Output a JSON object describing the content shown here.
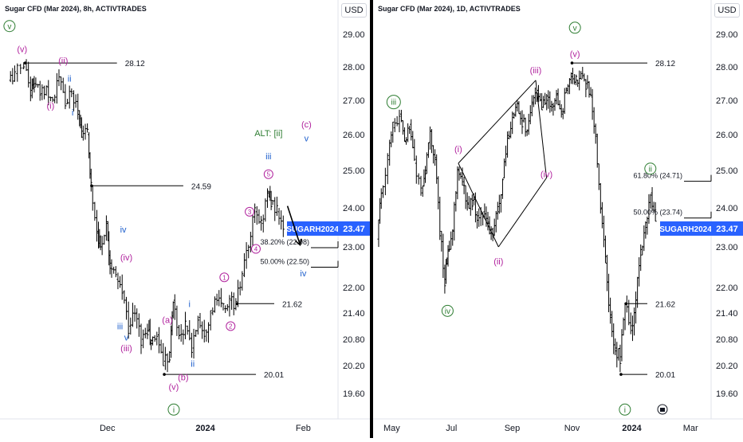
{
  "chart_data": [
    {
      "type": "candlestick",
      "title": "Sugar CFD (Mar 2024), 8h, ACTIVTRADES",
      "currency": "USD",
      "x_ticks": [
        "Dec",
        "2024",
        "Feb"
      ],
      "y_ticks": [
        29.0,
        28.0,
        27.0,
        26.0,
        25.0,
        24.0,
        23.0,
        22.0,
        21.4,
        20.8,
        20.2,
        19.6
      ],
      "ylim": [
        19.2,
        29.6
      ],
      "price_lines": [
        {
          "label": "28.12",
          "value": 28.12
        },
        {
          "label": "24.59",
          "value": 24.59
        },
        {
          "label": "21.62",
          "value": 21.62
        },
        {
          "label": "20.01",
          "value": 20.01
        }
      ],
      "fib_levels": [
        {
          "label": "38.20% (22.98)",
          "value": 22.98
        },
        {
          "label": "50.00% (22.50)",
          "value": 22.5
        }
      ],
      "last_price": {
        "symbol": "SUGARH2024",
        "value": "23.47"
      },
      "price_path": [
        [
          "2023-10-31",
          27.6
        ],
        [
          "2023-11-02",
          27.8
        ],
        [
          "2023-11-05",
          28.1
        ],
        [
          "2023-11-07",
          27.3
        ],
        [
          "2023-11-08",
          27.5
        ],
        [
          "2023-11-10",
          27.2
        ],
        [
          "2023-11-12",
          27.4
        ],
        [
          "2023-11-14",
          27.0
        ],
        [
          "2023-11-16",
          27.7
        ],
        [
          "2023-11-18",
          26.9
        ],
        [
          "2023-11-20",
          27.2
        ],
        [
          "2023-11-22",
          26.7
        ],
        [
          "2023-11-23",
          26.1
        ],
        [
          "2023-11-25",
          26.0
        ],
        [
          "2023-11-26",
          24.6
        ],
        [
          "2023-11-28",
          23.4
        ],
        [
          "2023-11-29",
          23.0
        ],
        [
          "2023-12-01",
          23.6
        ],
        [
          "2023-12-02",
          22.6
        ],
        [
          "2023-12-04",
          22.2
        ],
        [
          "2023-12-06",
          21.9
        ],
        [
          "2023-12-08",
          21.1
        ],
        [
          "2023-12-10",
          21.4
        ],
        [
          "2023-12-12",
          20.8
        ],
        [
          "2023-12-14",
          21.0
        ],
        [
          "2023-12-15",
          20.7
        ],
        [
          "2023-12-17",
          20.9
        ],
        [
          "2023-12-19",
          20.3
        ],
        [
          "2023-12-21",
          20.5
        ],
        [
          "2023-12-22",
          21.7
        ],
        [
          "2023-12-24",
          20.9
        ],
        [
          "2023-12-26",
          21.1
        ],
        [
          "2023-12-28",
          20.6
        ],
        [
          "2023-12-30",
          21.3
        ],
        [
          "2024-01-01",
          21.0
        ],
        [
          "2024-01-03",
          21.4
        ],
        [
          "2024-01-05",
          21.7
        ],
        [
          "2024-01-07",
          21.5
        ],
        [
          "2024-01-09",
          21.7
        ],
        [
          "2024-01-11",
          21.6
        ],
        [
          "2024-01-13",
          22.3
        ],
        [
          "2024-01-15",
          23.0
        ],
        [
          "2024-01-17",
          23.9
        ],
        [
          "2024-01-19",
          23.6
        ],
        [
          "2024-01-21",
          24.4
        ],
        [
          "2024-01-22",
          24.2
        ],
        [
          "2024-01-24",
          23.9
        ],
        [
          "2024-01-26",
          23.5
        ]
      ],
      "annotations": [
        {
          "text": "v",
          "style": "circle",
          "color": "#2e7d32",
          "date": "2023-10-31",
          "price": 29.25
        },
        {
          "text": "(v)",
          "color": "#b1239e",
          "date": "2023-11-04",
          "price": 28.55
        },
        {
          "text": "(ii)",
          "color": "#b1239e",
          "date": "2023-11-17",
          "price": 28.2
        },
        {
          "text": "ii",
          "color": "#1e5fcc",
          "date": "2023-11-19",
          "price": 27.65
        },
        {
          "text": "(i)",
          "color": "#b1239e",
          "date": "2023-11-13",
          "price": 26.85
        },
        {
          "text": "i",
          "color": "#1e5fcc",
          "date": "2023-11-20",
          "price": 26.65
        },
        {
          "text": "iv",
          "color": "#1e5fcc",
          "date": "2023-12-06",
          "price": 23.45
        },
        {
          "text": "(iv)",
          "color": "#b1239e",
          "date": "2023-12-07",
          "price": 22.75
        },
        {
          "text": "iii",
          "color": "#1e5fcc",
          "date": "2023-12-05",
          "price": 21.1
        },
        {
          "text": "v",
          "color": "#1e5fcc",
          "date": "2023-12-07",
          "price": 20.85
        },
        {
          "text": "(iii)",
          "color": "#b1239e",
          "date": "2023-12-07",
          "price": 20.6
        },
        {
          "text": "(a)",
          "color": "#b1239e",
          "date": "2023-12-20",
          "price": 21.25
        },
        {
          "text": "i",
          "color": "#1e5fcc",
          "date": "2023-12-27",
          "price": 21.62
        },
        {
          "text": "ii",
          "color": "#1e5fcc",
          "date": "2023-12-28",
          "price": 20.25
        },
        {
          "text": "(b)",
          "color": "#b1239e",
          "date": "2023-12-25",
          "price": 19.95
        },
        {
          "text": "(v)",
          "color": "#b1239e",
          "date": "2023-12-22",
          "price": 19.75
        },
        {
          "text": "i",
          "style": "circle",
          "color": "#2e7d32",
          "date": "2023-12-22",
          "price": 19.25
        },
        {
          "text": "1",
          "style": "circle",
          "color": "#b1239e",
          "date": "2024-01-07",
          "price": 22.25
        },
        {
          "text": "2",
          "style": "circle",
          "color": "#b1239e",
          "date": "2024-01-09",
          "price": 21.1
        },
        {
          "text": "3",
          "style": "circle",
          "color": "#b1239e",
          "date": "2024-01-15",
          "price": 23.9
        },
        {
          "text": "4",
          "style": "circle",
          "color": "#b1239e",
          "date": "2024-01-17",
          "price": 22.95
        },
        {
          "text": "5",
          "style": "circle",
          "color": "#b1239e",
          "date": "2024-01-21",
          "price": 24.9
        },
        {
          "text": "ALT: [ii]",
          "color": "#2e7d32",
          "date": "2024-01-21",
          "price": 26.05
        },
        {
          "text": "iii",
          "color": "#1e5fcc",
          "date": "2024-01-21",
          "price": 25.4
        },
        {
          "text": "(c)",
          "color": "#b1239e",
          "date": "2024-02-02",
          "price": 26.3
        },
        {
          "text": "v",
          "color": "#1e5fcc",
          "date": "2024-02-02",
          "price": 25.9
        },
        {
          "text": "iv",
          "color": "#1e5fcc",
          "date": "2024-02-01",
          "price": 22.35
        }
      ],
      "arrow": {
        "from": [
          "2024-01-27",
          24.05
        ],
        "to": [
          "2024-01-31",
          23.05
        ]
      }
    },
    {
      "type": "candlestick",
      "title": "Sugar CFD (Mar 2024), 1D, ACTIVTRADES",
      "currency": "USD",
      "x_ticks": [
        "May",
        "Jul",
        "Sep",
        "Nov",
        "2024",
        "Mar"
      ],
      "y_ticks": [
        29.0,
        28.0,
        27.0,
        26.0,
        25.0,
        24.0,
        23.0,
        22.0,
        21.4,
        20.8,
        20.2,
        19.6
      ],
      "ylim": [
        19.2,
        29.6
      ],
      "price_lines": [
        {
          "label": "28.12",
          "value": 28.12
        },
        {
          "label": "21.62",
          "value": 21.62
        },
        {
          "label": "20.01",
          "value": 20.01
        }
      ],
      "fib_levels": [
        {
          "label": "61.80% (24.71)",
          "value": 24.71
        },
        {
          "label": "50.00% (23.74)",
          "value": 23.74
        }
      ],
      "last_price": {
        "symbol": "SUGARH2024",
        "value": "23.47"
      },
      "price_path": [
        [
          "2023-04-17",
          23.2
        ],
        [
          "2023-04-21",
          24.4
        ],
        [
          "2023-04-28",
          25.3
        ],
        [
          "2023-05-03",
          26.2
        ],
        [
          "2023-05-10",
          26.6
        ],
        [
          "2023-05-15",
          25.8
        ],
        [
          "2023-05-20",
          26.3
        ],
        [
          "2023-05-25",
          25.2
        ],
        [
          "2023-06-01",
          24.4
        ],
        [
          "2023-06-05",
          25.0
        ],
        [
          "2023-06-10",
          26.1
        ],
        [
          "2023-06-15",
          25.3
        ],
        [
          "2023-06-20",
          23.4
        ],
        [
          "2023-06-25",
          22.2
        ],
        [
          "2023-06-28",
          22.9
        ],
        [
          "2023-07-03",
          23.4
        ],
        [
          "2023-07-08",
          25.0
        ],
        [
          "2023-07-13",
          24.6
        ],
        [
          "2023-07-18",
          24.1
        ],
        [
          "2023-07-23",
          24.2
        ],
        [
          "2023-07-28",
          23.8
        ],
        [
          "2023-08-03",
          23.9
        ],
        [
          "2023-08-08",
          23.6
        ],
        [
          "2023-08-13",
          23.3
        ],
        [
          "2023-08-18",
          23.9
        ],
        [
          "2023-08-23",
          24.8
        ],
        [
          "2023-08-28",
          25.9
        ],
        [
          "2023-09-02",
          26.5
        ],
        [
          "2023-09-07",
          26.9
        ],
        [
          "2023-09-12",
          26.4
        ],
        [
          "2023-09-17",
          26.1
        ],
        [
          "2023-09-22",
          26.9
        ],
        [
          "2023-09-27",
          27.3
        ],
        [
          "2023-10-02",
          26.8
        ],
        [
          "2023-10-07",
          27.0
        ],
        [
          "2023-10-12",
          26.8
        ],
        [
          "2023-10-17",
          27.2
        ],
        [
          "2023-10-22",
          26.6
        ],
        [
          "2023-10-27",
          27.3
        ],
        [
          "2023-11-01",
          27.8
        ],
        [
          "2023-11-06",
          27.6
        ],
        [
          "2023-11-11",
          27.8
        ],
        [
          "2023-11-16",
          27.5
        ],
        [
          "2023-11-21",
          27.1
        ],
        [
          "2023-11-26",
          26.0
        ],
        [
          "2023-12-01",
          24.0
        ],
        [
          "2023-12-06",
          22.6
        ],
        [
          "2023-12-11",
          21.3
        ],
        [
          "2023-12-16",
          20.6
        ],
        [
          "2023-12-21",
          20.4
        ],
        [
          "2023-12-26",
          21.6
        ],
        [
          "2024-01-01",
          21.0
        ],
        [
          "2024-01-06",
          21.7
        ],
        [
          "2024-01-11",
          22.8
        ],
        [
          "2024-01-16",
          23.5
        ],
        [
          "2024-01-21",
          24.4
        ],
        [
          "2024-01-26",
          23.5
        ]
      ],
      "annotations": [
        {
          "text": "v",
          "style": "circle",
          "color": "#2e7d32",
          "date": "2023-11-04",
          "price": 29.2
        },
        {
          "text": "(v)",
          "color": "#b1239e",
          "date": "2023-11-04",
          "price": 28.4
        },
        {
          "text": "(iii)",
          "color": "#b1239e",
          "date": "2023-09-25",
          "price": 27.9
        },
        {
          "text": "iii",
          "style": "circle",
          "color": "#2e7d32",
          "date": "2023-05-03",
          "price": 26.95
        },
        {
          "text": "(i)",
          "color": "#b1239e",
          "date": "2023-07-08",
          "price": 25.6
        },
        {
          "text": "(iv)",
          "color": "#b1239e",
          "date": "2023-10-06",
          "price": 24.9
        },
        {
          "text": "(ii)",
          "color": "#b1239e",
          "date": "2023-08-18",
          "price": 22.65
        },
        {
          "text": "iv",
          "style": "circle",
          "color": "#2e7d32",
          "date": "2023-06-27",
          "price": 21.45
        },
        {
          "text": "ii",
          "style": "circle",
          "color": "#2e7d32",
          "date": "2024-01-20",
          "price": 25.05
        },
        {
          "text": "i",
          "style": "circle",
          "color": "#2e7d32",
          "date": "2023-12-25",
          "price": 19.25
        }
      ],
      "wedge_lines": [
        [
          [
            "2023-07-08",
            25.2
          ],
          [
            "2023-09-25",
            27.6
          ]
        ],
        [
          [
            "2023-08-18",
            23.0
          ],
          [
            "2023-10-06",
            24.8
          ]
        ],
        [
          [
            "2023-07-08",
            25.2
          ],
          [
            "2023-08-18",
            23.0
          ]
        ],
        [
          [
            "2023-09-25",
            27.6
          ],
          [
            "2023-10-06",
            24.8
          ]
        ]
      ]
    }
  ]
}
